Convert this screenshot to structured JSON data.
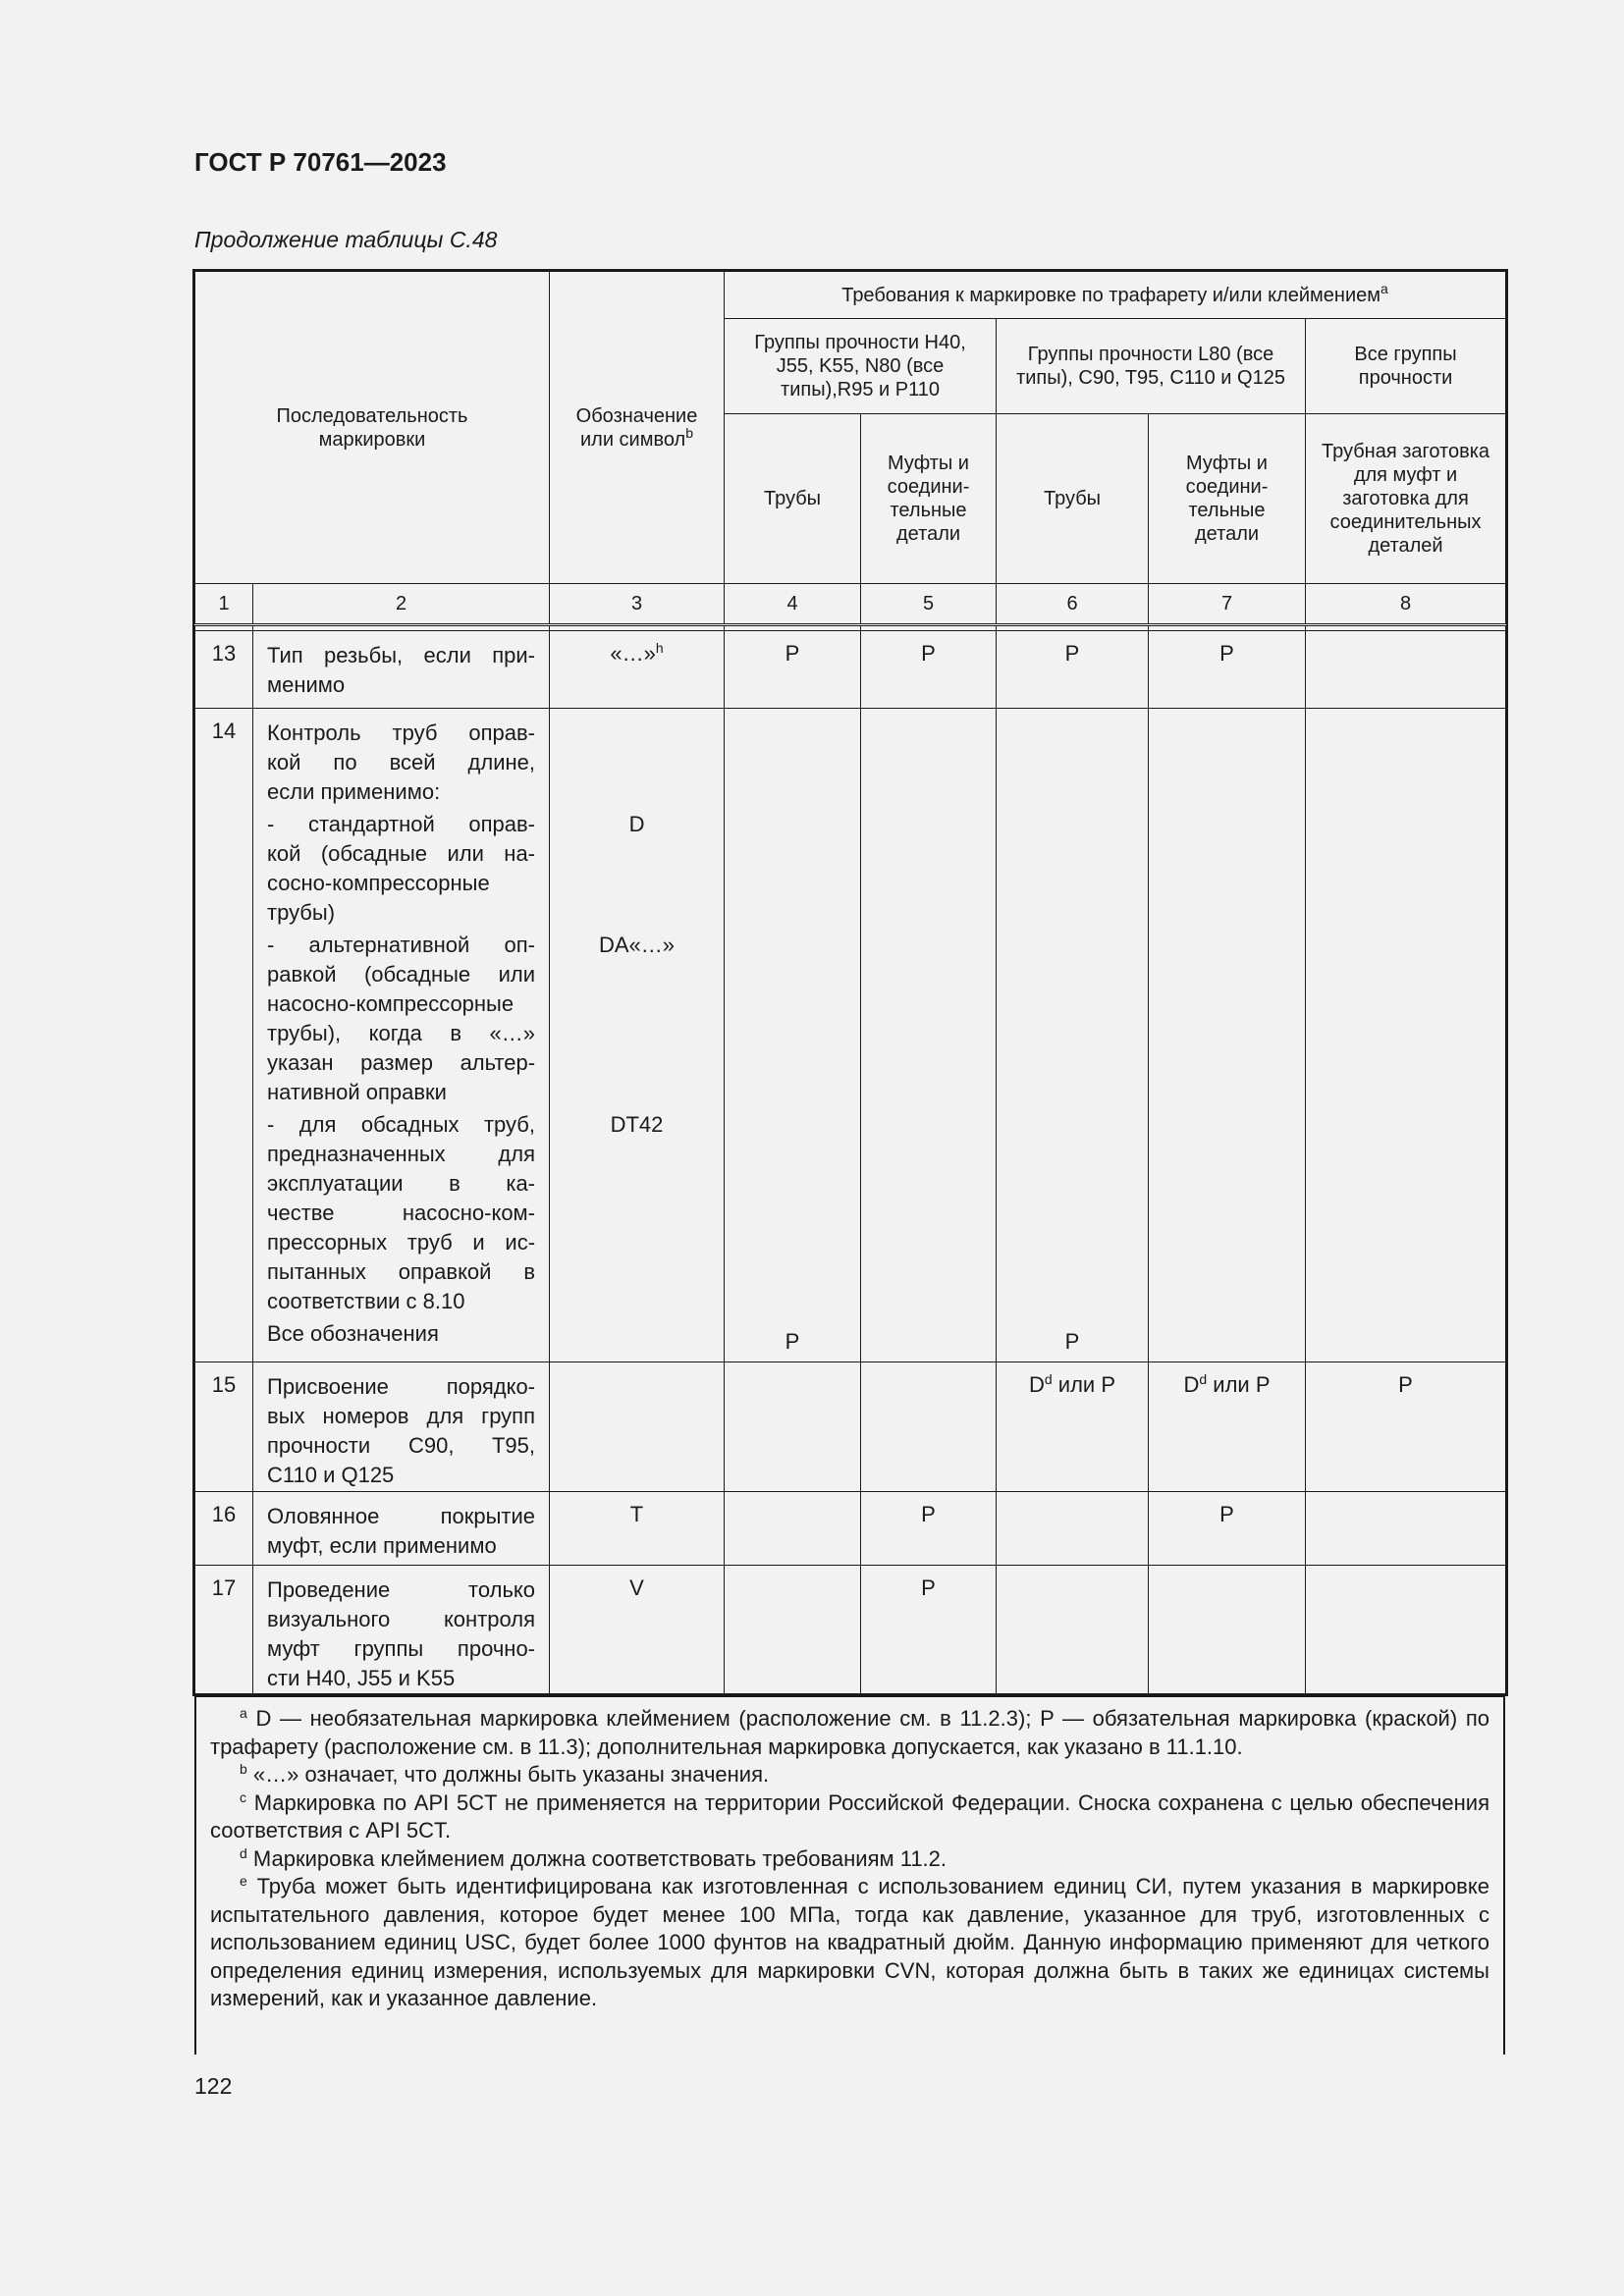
{
  "header": {
    "doc_title": "ГОСТ Р 70761—2023",
    "caption": "Продолжение таблицы С.48"
  },
  "table": {
    "head": {
      "col_seq": "Последовательность маркировки",
      "col_symbol": "Обозначение или символ",
      "col_symbol_sup": "b",
      "requirements": "Требования к маркировке по трафарету и/или клеймением",
      "requirements_sup": "a",
      "group1": "Группы прочности H40, J55, K55, N80 (все типы),R95 и P110",
      "group2": "Группы прочности L80 (все типы), C90, T95, C110 и Q125",
      "group3": "Все группы прочности",
      "pipes": "Трубы",
      "couplings": "Муфты и соедини-тельные детали",
      "blanks": "Трубная заготовка для муфт и заготовка для соединительных деталей"
    },
    "col_numbers": [
      "1",
      "2",
      "3",
      "4",
      "5",
      "6",
      "7",
      "8"
    ],
    "rows": {
      "r13": {
        "num": "13",
        "lines": [
          "Тип резьбы, если при-",
          "менимо"
        ],
        "symbol": "«…»",
        "symbol_sup": "h",
        "c4": "P",
        "c5": "P",
        "c6": "P",
        "c7": "P"
      },
      "r14": {
        "num": "14",
        "groups": [
          [
            "Контроль труб оправ-",
            "кой по всей длине,",
            "если применимо:"
          ],
          [
            "- стандартной оправ-",
            "кой (обсадные или на-",
            "сосно-компрессорные",
            "трубы)"
          ],
          [
            "- альтернативной оп-",
            "равкой (обсадные или",
            "насосно-компрессорные",
            "трубы), когда в «…»",
            "указан размер альтер-",
            "нативной оправки"
          ],
          [
            "- для обсадных труб,",
            "предназначенных для",
            "эксплуатации в ка-",
            "честве насосно-ком-",
            "прессорных труб и ис-",
            "пытанных оправкой в",
            "соответствии с 8.10"
          ],
          [
            "Все обозначения"
          ]
        ],
        "symbols": [
          "",
          "D",
          "DA«…»",
          "DT42",
          ""
        ],
        "c4": "P",
        "c6": "P"
      },
      "r15": {
        "num": "15",
        "lines": [
          "Присвоение порядко-",
          "вых номеров для групп",
          "прочности C90, T95,",
          "C110 и Q125"
        ],
        "c6_main": "D",
        "c6_sup": "d",
        "c6_rest": " или P",
        "c7_main": "D",
        "c7_sup": "d",
        "c7_rest": " или P",
        "c8": "P"
      },
      "r16": {
        "num": "16",
        "lines": [
          "Оловянное покрытие",
          "муфт, если применимо"
        ],
        "symbol": "T",
        "c5": "P",
        "c7": "P"
      },
      "r17": {
        "num": "17",
        "lines": [
          "Проведение только",
          "визуального контроля",
          "муфт группы прочно-",
          "сти H40, J55 и K55"
        ],
        "symbol": "V",
        "c5": "P"
      }
    }
  },
  "footnotes": [
    {
      "mark": "a",
      "text": "D — необязательная маркировка клеймением (расположение см. в 11.2.3); P — обязательная маркировка (краской) по трафарету (расположение см. в 11.3); дополнительная маркировка допускается, как указано в 11.1.10."
    },
    {
      "mark": "b",
      "text": "«…» означает, что должны быть указаны значения."
    },
    {
      "mark": "c",
      "text": "Маркировка по API 5CT не применяется на территории Российской Федерации. Сноска сохранена с целью обеспечения соответствия с API 5CT."
    },
    {
      "mark": "d",
      "text": "Маркировка клеймением должна соответствовать требованиям 11.2."
    },
    {
      "mark": "e",
      "text": "Труба может быть идентифицирована как изготовленная с использованием единиц СИ, путем указания в маркировке испытательного давления, которое будет менее 100 МПа, тогда как давление, указанное для труб, изготовленных с использованием единиц USC, будет более 1000 фунтов на квадратный дюйм. Данную информацию применяют для четкого определения единиц измерения, используемых для маркировки CVN, которая должна быть в таких же единицах системы измерений, как и указанное давление."
    }
  ],
  "page_number": "122"
}
